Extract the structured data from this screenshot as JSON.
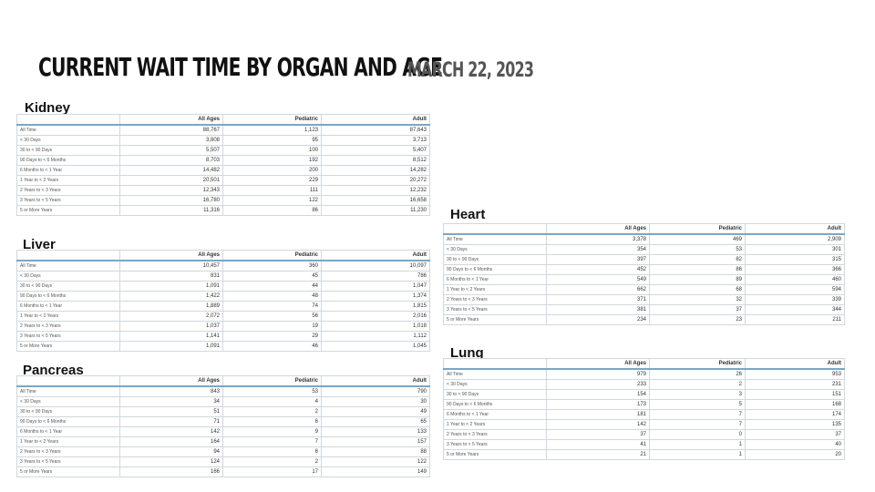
{
  "page": {
    "title": "CURRENT WAIT TIME BY ORGAN AND AGE",
    "date": "MARCH 22, 2023"
  },
  "columns": [
    "All Ages",
    "Pediatric",
    "Adult"
  ],
  "kidney": {
    "title": "Kidney",
    "rows": [
      {
        "label": "All Time",
        "all": "88,767",
        "ped": "1,123",
        "adult": "87,643"
      },
      {
        "label": "< 30 Days",
        "all": "3,808",
        "ped": "95",
        "adult": "3,713"
      },
      {
        "label": "30 to < 90 Days",
        "all": "5,507",
        "ped": "100",
        "adult": "5,407"
      },
      {
        "label": "90 Days to < 6 Months",
        "all": "8,703",
        "ped": "192",
        "adult": "8,512"
      },
      {
        "label": "6 Months to < 1 Year",
        "all": "14,482",
        "ped": "200",
        "adult": "14,282"
      },
      {
        "label": "1 Year to < 2 Years",
        "all": "20,501",
        "ped": "229",
        "adult": "20,272"
      },
      {
        "label": "2 Years to < 3 Years",
        "all": "12,343",
        "ped": "111",
        "adult": "12,232"
      },
      {
        "label": "3 Years to < 5 Years",
        "all": "16,780",
        "ped": "122",
        "adult": "16,658"
      },
      {
        "label": "5 or More Years",
        "all": "11,316",
        "ped": "86",
        "adult": "11,230"
      }
    ]
  },
  "liver": {
    "title": "Liver",
    "rows": [
      {
        "label": "All Time",
        "all": "10,457",
        "ped": "360",
        "adult": "10,097"
      },
      {
        "label": "< 30 Days",
        "all": "831",
        "ped": "45",
        "adult": "786"
      },
      {
        "label": "30 to < 90 Days",
        "all": "1,091",
        "ped": "44",
        "adult": "1,047"
      },
      {
        "label": "90 Days to < 6 Months",
        "all": "1,422",
        "ped": "48",
        "adult": "1,374"
      },
      {
        "label": "6 Months to < 1 Year",
        "all": "1,889",
        "ped": "74",
        "adult": "1,815"
      },
      {
        "label": "1 Year to < 2 Years",
        "all": "2,072",
        "ped": "56",
        "adult": "2,016"
      },
      {
        "label": "2 Years to < 3 Years",
        "all": "1,037",
        "ped": "19",
        "adult": "1,018"
      },
      {
        "label": "3 Years to < 5 Years",
        "all": "1,141",
        "ped": "29",
        "adult": "1,112"
      },
      {
        "label": "5 or More Years",
        "all": "1,091",
        "ped": "46",
        "adult": "1,045"
      }
    ]
  },
  "pancreas": {
    "title": "Pancreas",
    "rows": [
      {
        "label": "All Time",
        "all": "843",
        "ped": "53",
        "adult": "790"
      },
      {
        "label": "< 30 Days",
        "all": "34",
        "ped": "4",
        "adult": "30"
      },
      {
        "label": "30 to < 90 Days",
        "all": "51",
        "ped": "2",
        "adult": "49"
      },
      {
        "label": "90 Days to < 6 Months",
        "all": "71",
        "ped": "6",
        "adult": "65"
      },
      {
        "label": "6 Months to < 1 Year",
        "all": "142",
        "ped": "9",
        "adult": "133"
      },
      {
        "label": "1 Year to < 2 Years",
        "all": "164",
        "ped": "7",
        "adult": "157"
      },
      {
        "label": "2 Years to < 3 Years",
        "all": "94",
        "ped": "6",
        "adult": "88"
      },
      {
        "label": "3 Years to < 5 Years",
        "all": "124",
        "ped": "2",
        "adult": "122"
      },
      {
        "label": "5 or More Years",
        "all": "166",
        "ped": "17",
        "adult": "149"
      }
    ]
  },
  "heart": {
    "title": "Heart",
    "rows": [
      {
        "label": "All Time",
        "all": "3,378",
        "ped": "469",
        "adult": "2,909"
      },
      {
        "label": "< 30 Days",
        "all": "354",
        "ped": "53",
        "adult": "301"
      },
      {
        "label": "30 to < 90 Days",
        "all": "397",
        "ped": "82",
        "adult": "315"
      },
      {
        "label": "90 Days to < 6 Months",
        "all": "452",
        "ped": "86",
        "adult": "366"
      },
      {
        "label": "6 Months to < 1 Year",
        "all": "549",
        "ped": "89",
        "adult": "460"
      },
      {
        "label": "1 Year to < 2 Years",
        "all": "662",
        "ped": "68",
        "adult": "594"
      },
      {
        "label": "2 Years to < 3 Years",
        "all": "371",
        "ped": "32",
        "adult": "339"
      },
      {
        "label": "3 Years to < 5 Years",
        "all": "381",
        "ped": "37",
        "adult": "344"
      },
      {
        "label": "5 or More Years",
        "all": "234",
        "ped": "23",
        "adult": "211"
      }
    ]
  },
  "lung": {
    "title": "Lung",
    "rows": [
      {
        "label": "All Time",
        "all": "979",
        "ped": "26",
        "adult": "953"
      },
      {
        "label": "< 30 Days",
        "all": "233",
        "ped": "2",
        "adult": "231"
      },
      {
        "label": "30 to < 90 Days",
        "all": "154",
        "ped": "3",
        "adult": "151"
      },
      {
        "label": "90 Days to < 6 Months",
        "all": "173",
        "ped": "5",
        "adult": "168"
      },
      {
        "label": "6 Months to < 1 Year",
        "all": "181",
        "ped": "7",
        "adult": "174"
      },
      {
        "label": "1 Year to < 2 Years",
        "all": "142",
        "ped": "7",
        "adult": "135"
      },
      {
        "label": "2 Years to < 3 Years",
        "all": "37",
        "ped": "0",
        "adult": "37"
      },
      {
        "label": "3 Years to < 5 Years",
        "all": "41",
        "ped": "1",
        "adult": "40"
      },
      {
        "label": "5 or More Years",
        "all": "21",
        "ped": "1",
        "adult": "20"
      }
    ]
  }
}
